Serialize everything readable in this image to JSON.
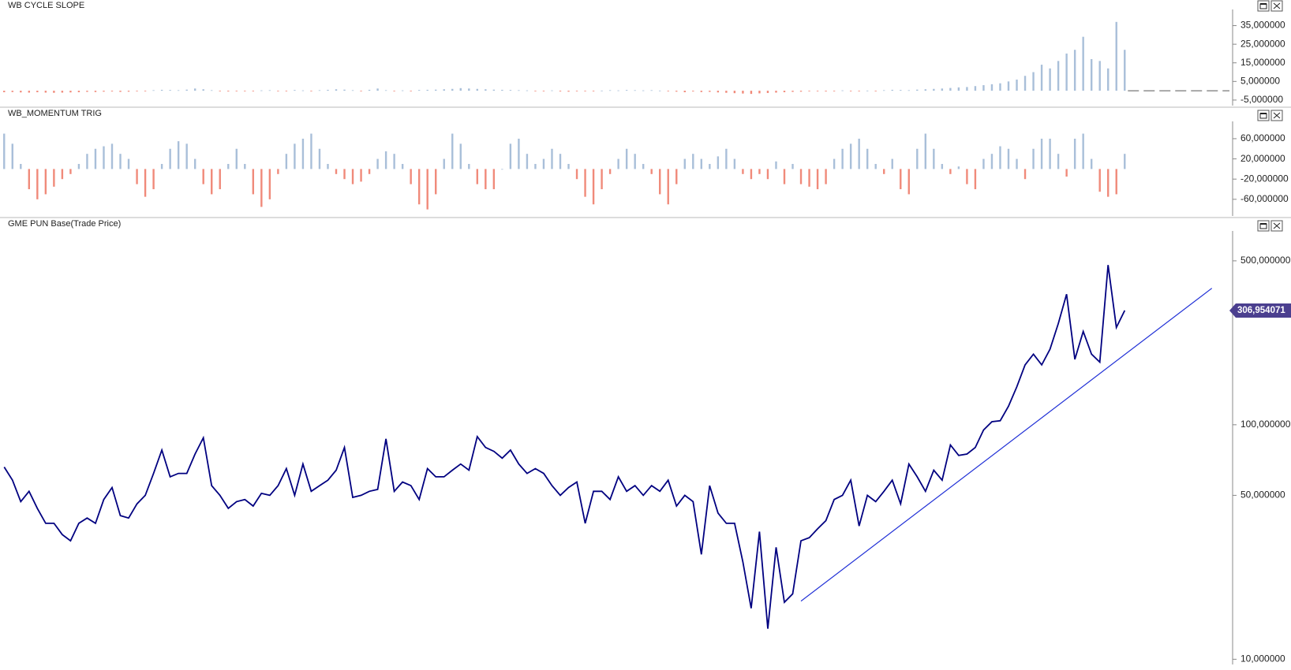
{
  "chart_data": [
    {
      "type": "bar",
      "title": "WB CYCLE SLOPE",
      "colors": {
        "positive": "#a9bfd9",
        "negative": "#f08a7a"
      },
      "xlim": [
        -0.5,
        148
      ],
      "ylim": [
        -8,
        42
      ],
      "yticks": [
        {
          "value": 35,
          "label": "35,000000"
        },
        {
          "value": 25,
          "label": "25,000000"
        },
        {
          "value": 15,
          "label": "15,000000"
        },
        {
          "value": 5,
          "label": "5,000000"
        },
        {
          "value": -5,
          "label": "-5,000000"
        }
      ],
      "values": [
        -0.8,
        -0.7,
        -0.9,
        -1,
        -0.8,
        -1,
        -1.1,
        -1,
        -0.9,
        -0.8,
        -0.6,
        -0.7,
        -0.5,
        -0.4,
        -0.6,
        -0.5,
        -0.3,
        -0.2,
        0.3,
        0.5,
        0.4,
        0.3,
        0.6,
        1.2,
        0.8,
        0.3,
        -0.2,
        -0.4,
        -0.3,
        -0.2,
        -0.1,
        0.2,
        0.3,
        -0.2,
        -0.3,
        0.4,
        0.2,
        -0.2,
        0.3,
        0.5,
        0.8,
        0.6,
        0.3,
        -0.2,
        0.5,
        1.2,
        0.3,
        -0.2,
        0.2,
        -0.3,
        0.4,
        0.5,
        0.6,
        0.8,
        1.0,
        1.4,
        1.2,
        1.0,
        0.8,
        0.6,
        0.5,
        0.4,
        0.3,
        0.2,
        -0.3,
        -0.2,
        0.2,
        -0.4,
        -0.5,
        -0.3,
        -0.2,
        -0.1,
        0.1,
        0.3,
        0.2,
        0.4,
        0.3,
        0.2,
        0.3,
        0.1,
        -0.2,
        -0.5,
        -0.8,
        -0.4,
        -0.7,
        -0.6,
        -0.9,
        -1.1,
        -1.3,
        -1.5,
        -1.7,
        -1.4,
        -1.2,
        -1,
        -0.8,
        -0.6,
        -0.5,
        -0.3,
        -0.2,
        -0.4,
        -0.1,
        0.2,
        -0.3,
        -0.2,
        0.1,
        -0.2,
        0.3,
        0.5,
        0.4,
        0.3,
        0.6,
        0.8,
        1.0,
        1.2,
        1.5,
        1.8,
        2,
        2.5,
        3,
        3.5,
        4,
        5,
        6,
        8,
        10,
        14,
        12,
        16,
        20,
        22,
        29,
        17,
        16,
        12,
        37,
        22
      ]
    },
    {
      "type": "bar",
      "title": "WB_MOMENTUM TRIG",
      "colors": {
        "positive": "#a9bfd9",
        "negative": "#f08a7a"
      },
      "xlim": [
        -0.5,
        148
      ],
      "ylim": [
        -93,
        88
      ],
      "yticks": [
        {
          "value": 60,
          "label": "60,000000"
        },
        {
          "value": 20,
          "label": "20,000000"
        },
        {
          "value": -20,
          "label": "-20,000000"
        },
        {
          "value": -60,
          "label": "-60,000000"
        }
      ],
      "values": [
        70,
        50,
        10,
        -40,
        -60,
        -50,
        -35,
        -20,
        -10,
        10,
        30,
        40,
        45,
        50,
        30,
        20,
        -30,
        -55,
        -40,
        10,
        40,
        55,
        50,
        20,
        -30,
        -50,
        -40,
        10,
        40,
        10,
        -50,
        -75,
        -60,
        -10,
        30,
        50,
        60,
        70,
        40,
        10,
        -10,
        -20,
        -30,
        -25,
        -10,
        20,
        35,
        30,
        10,
        -30,
        -70,
        -80,
        -50,
        20,
        70,
        50,
        10,
        -30,
        -40,
        -40,
        0,
        50,
        60,
        30,
        10,
        20,
        40,
        30,
        10,
        -20,
        -55,
        -70,
        -40,
        -10,
        20,
        40,
        30,
        10,
        -10,
        -50,
        -70,
        -30,
        20,
        30,
        20,
        10,
        25,
        40,
        20,
        -10,
        -20,
        -10,
        -20,
        15,
        -30,
        10,
        -30,
        -35,
        -40,
        -30,
        20,
        40,
        50,
        60,
        40,
        10,
        -10,
        20,
        -40,
        -50,
        40,
        70,
        40,
        10,
        -10,
        5,
        -30,
        -40,
        20,
        30,
        45,
        40,
        20,
        -20,
        40,
        60,
        60,
        30,
        -15,
        60,
        70,
        20,
        -45,
        -55,
        -50,
        30
      ]
    },
    {
      "type": "line",
      "title": "GME PUN Base(Trade Price)",
      "color": "#000080",
      "log_scale": true,
      "xlim": [
        -0.5,
        148
      ],
      "ylim": [
        9.5,
        650
      ],
      "yticks": [
        {
          "value": 500,
          "label": "500,000000"
        },
        {
          "value": 100,
          "label": "100,000000"
        },
        {
          "value": 50,
          "label": "50,000000"
        },
        {
          "value": 10,
          "label": "10,000000"
        }
      ],
      "values": [
        66,
        58,
        47,
        52,
        44,
        38,
        38,
        34,
        32,
        38,
        40,
        38,
        48,
        54,
        41,
        40,
        46,
        50,
        62,
        78,
        60,
        62,
        62,
        75,
        88,
        55,
        50,
        44,
        47,
        48,
        45,
        51,
        50,
        55,
        65,
        50,
        68,
        52,
        55,
        58,
        64,
        80,
        49,
        50,
        52,
        53,
        87,
        52,
        57,
        55,
        48,
        65,
        60,
        60,
        64,
        68,
        64,
        89,
        80,
        77,
        72,
        78,
        68,
        62,
        65,
        62,
        55,
        50,
        54,
        57,
        38,
        52,
        52,
        48,
        60,
        52,
        55,
        50,
        55,
        52,
        58,
        45,
        50,
        47,
        28,
        55,
        42,
        38,
        38,
        26,
        16.5,
        35,
        13.5,
        30,
        17.5,
        19,
        32,
        33,
        36,
        39,
        48,
        50,
        58,
        37,
        50,
        47,
        52,
        58,
        46,
        68,
        60,
        52,
        64,
        58,
        82,
        74,
        75,
        80,
        95,
        103,
        104,
        120,
        145,
        180,
        200,
        180,
        210,
        270,
        360,
        190,
        250,
        200,
        185,
        480,
        260,
        306.954071
      ],
      "trendline": {
        "x": [
          96,
          145.5
        ],
        "values": [
          17.7,
          382
        ],
        "color": "#1f2fd6"
      },
      "last_label": {
        "value": 306.954071,
        "label": "306,954071",
        "color": "#4b3f8f"
      }
    }
  ]
}
